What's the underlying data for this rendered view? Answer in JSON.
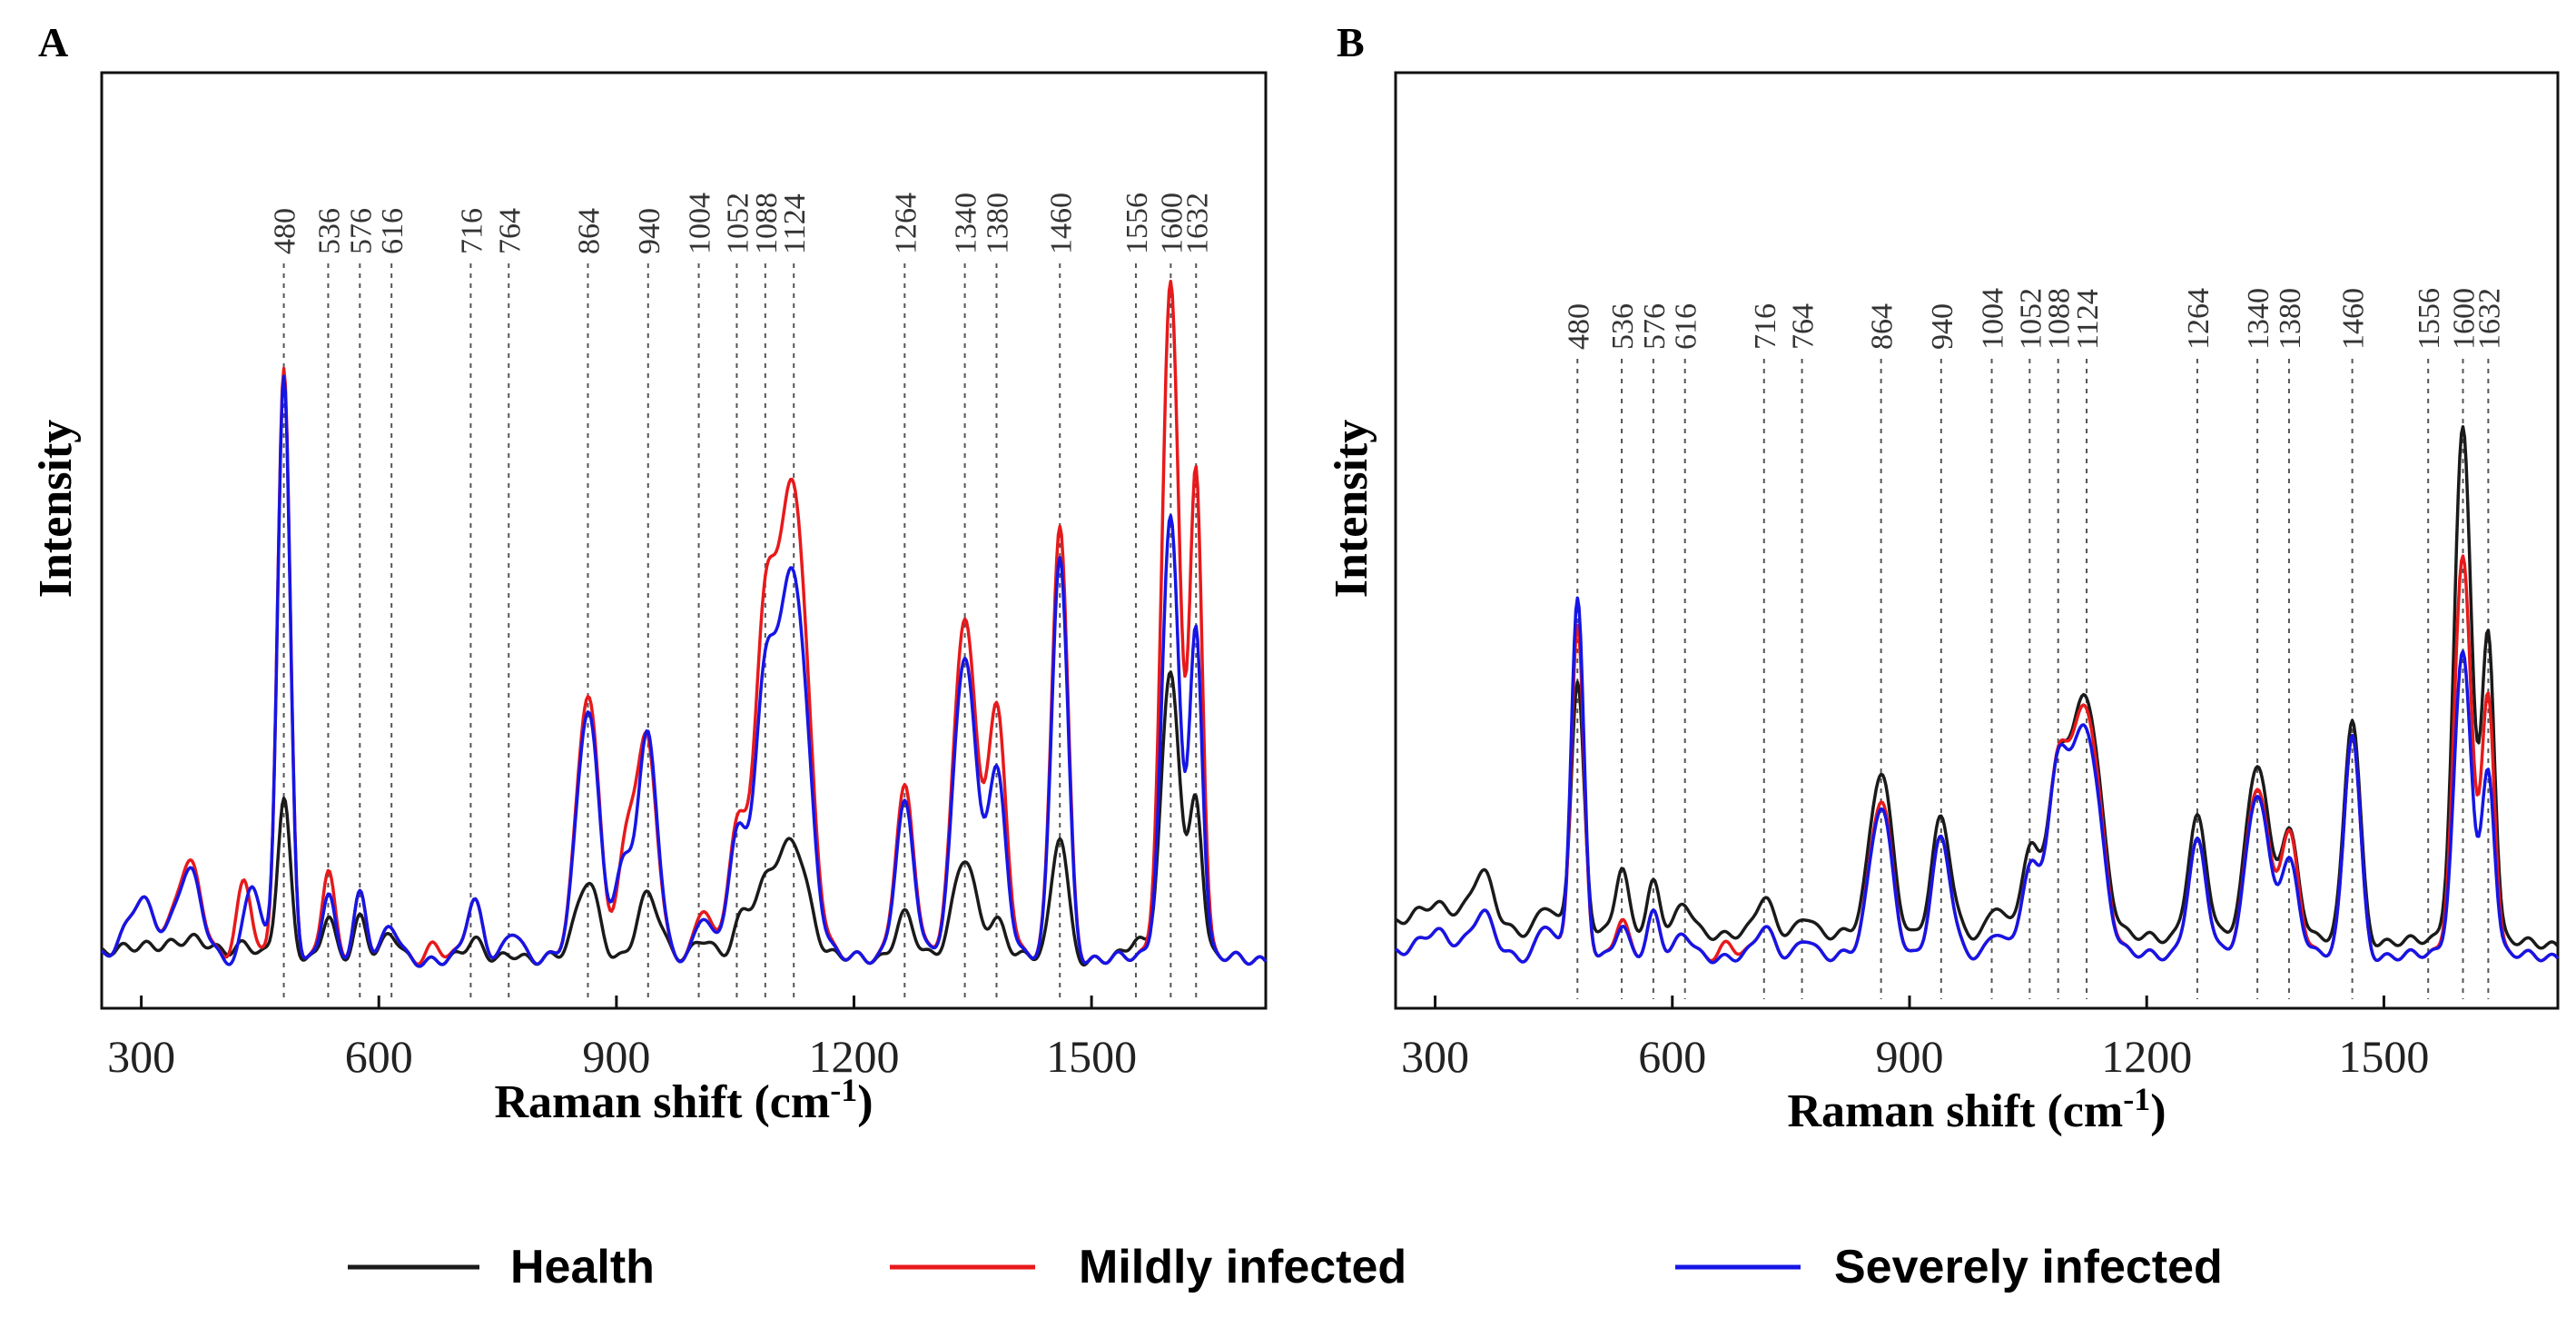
{
  "figure": {
    "legend": [
      {
        "name": "Health",
        "color": "#1a1a1a"
      },
      {
        "name": "Mildly infected",
        "color": "#e8191b"
      },
      {
        "name": "Severely infected",
        "color": "#1515e6"
      }
    ]
  },
  "chart_data": [
    {
      "type": "line",
      "panel": "A",
      "xlabel": "Raman shift (cm-1)",
      "xlabel_main": "Raman shift (cm",
      "xlabel_sup": "-1",
      "xlabel_close": ")",
      "ylabel": "Intensity",
      "xlim": [
        250,
        1720
      ],
      "ylim": [
        0,
        100
      ],
      "xticks": [
        300,
        600,
        900,
        1200,
        1500
      ],
      "xtick_labels": [
        "300",
        "600",
        "900",
        "1200",
        "1500"
      ],
      "peak_labels": [
        "480",
        "536",
        "576",
        "616",
        "716",
        "764",
        "864",
        "940",
        "1004",
        "1052",
        "1088",
        "1124",
        "1264",
        "1340",
        "1380",
        "1460",
        "1556",
        "1600",
        "1632"
      ],
      "series": [
        {
          "name": "Health",
          "color": "#1a1a1a",
          "baseline": 4,
          "slope": 0,
          "peaks": [
            [
              300,
              2,
              30
            ],
            [
              370,
              2,
              25
            ],
            [
              430,
              2,
              15
            ],
            [
              480,
              20,
              8
            ],
            [
              536,
              6,
              8
            ],
            [
              576,
              5,
              8
            ],
            [
              616,
              3,
              10
            ],
            [
              720,
              2,
              10
            ],
            [
              770,
              1,
              10
            ],
            [
              864,
              10,
              14
            ],
            [
              940,
              8,
              14
            ],
            [
              1010,
              3,
              12
            ],
            [
              1060,
              5,
              12
            ],
            [
              1090,
              8,
              14
            ],
            [
              1124,
              15,
              18
            ],
            [
              1264,
              6,
              12
            ],
            [
              1340,
              13,
              14
            ],
            [
              1380,
              5,
              12
            ],
            [
              1460,
              16,
              10
            ],
            [
              1556,
              2,
              10
            ],
            [
              1600,
              37,
              12
            ],
            [
              1632,
              20,
              8
            ]
          ]
        },
        {
          "name": "Mildly infected",
          "color": "#e8191b",
          "baseline": 4,
          "slope": 0,
          "peaks": [
            [
              300,
              8,
              18
            ],
            [
              360,
              12,
              16
            ],
            [
              430,
              10,
              10
            ],
            [
              480,
              75,
              8
            ],
            [
              536,
              12,
              8
            ],
            [
              576,
              8,
              8
            ],
            [
              616,
              4,
              10
            ],
            [
              670,
              2,
              10
            ],
            [
              720,
              7,
              10
            ],
            [
              770,
              4,
              10
            ],
            [
              864,
              34,
              14
            ],
            [
              915,
              16,
              12
            ],
            [
              940,
              26,
              12
            ],
            [
              1010,
              7,
              10
            ],
            [
              1052,
              16,
              12
            ],
            [
              1088,
              40,
              14
            ],
            [
              1124,
              60,
              18
            ],
            [
              1264,
              22,
              12
            ],
            [
              1340,
              44,
              14
            ],
            [
              1380,
              32,
              12
            ],
            [
              1460,
              56,
              10
            ],
            [
              1600,
              87,
              11
            ],
            [
              1632,
              62,
              8
            ]
          ]
        },
        {
          "name": "Severely infected",
          "color": "#1515e6",
          "baseline": 4,
          "slope": 0,
          "peaks": [
            [
              300,
              8,
              18
            ],
            [
              360,
              11,
              16
            ],
            [
              440,
              10,
              10
            ],
            [
              480,
              74,
              8
            ],
            [
              536,
              9,
              8
            ],
            [
              576,
              8,
              8
            ],
            [
              616,
              4,
              10
            ],
            [
              720,
              7,
              10
            ],
            [
              770,
              4,
              10
            ],
            [
              864,
              32,
              14
            ],
            [
              910,
              12,
              12
            ],
            [
              940,
              28,
              12
            ],
            [
              1010,
              6,
              10
            ],
            [
              1052,
              15,
              12
            ],
            [
              1088,
              32,
              14
            ],
            [
              1124,
              49,
              18
            ],
            [
              1264,
              20,
              12
            ],
            [
              1340,
              39,
              14
            ],
            [
              1380,
              24,
              12
            ],
            [
              1460,
              52,
              10
            ],
            [
              1600,
              57,
              11
            ],
            [
              1632,
              42,
              8
            ]
          ]
        }
      ]
    },
    {
      "type": "line",
      "panel": "B",
      "xlabel": "Raman shift (cm-1)",
      "xlabel_main": "Raman shift (cm",
      "xlabel_sup": "-1",
      "xlabel_close": ")",
      "ylabel": "Intensity",
      "xlim": [
        250,
        1720
      ],
      "ylim": [
        0,
        100
      ],
      "xticks": [
        300,
        600,
        900,
        1200,
        1500
      ],
      "xtick_labels": [
        "300",
        "600",
        "900",
        "1200",
        "1500"
      ],
      "peak_labels": [
        "480",
        "536",
        "576",
        "616",
        "716",
        "764",
        "864",
        "940",
        "1004",
        "1052",
        "1088",
        "1124",
        "1264",
        "1340",
        "1380",
        "1460",
        "1556",
        "1600",
        "1632"
      ],
      "series": [
        {
          "name": "Health",
          "color": "#1a1a1a",
          "baseline": 9,
          "slope": -0.0015,
          "peaks": [
            [
              300,
              4,
              25
            ],
            [
              360,
              8,
              14
            ],
            [
              440,
              4,
              10
            ],
            [
              480,
              36,
              8
            ],
            [
              536,
              10,
              8
            ],
            [
              576,
              7,
              8
            ],
            [
              616,
              4,
              10
            ],
            [
              716,
              5,
              10
            ],
            [
              770,
              3,
              10
            ],
            [
              864,
              24,
              14
            ],
            [
              940,
              17,
              12
            ],
            [
              1010,
              5,
              10
            ],
            [
              1052,
              12,
              12
            ],
            [
              1088,
              22,
              14
            ],
            [
              1124,
              35,
              18
            ],
            [
              1264,
              18,
              12
            ],
            [
              1340,
              26,
              14
            ],
            [
              1380,
              16,
              12
            ],
            [
              1460,
              33,
              10
            ],
            [
              1600,
              76,
              11
            ],
            [
              1632,
              45,
              8
            ]
          ]
        },
        {
          "name": "Mildly infected",
          "color": "#e8191b",
          "baseline": 5,
          "slope": 0,
          "peaks": [
            [
              300,
              4,
              20
            ],
            [
              360,
              6,
              14
            ],
            [
              440,
              5,
              10
            ],
            [
              480,
              48,
              8
            ],
            [
              536,
              6,
              8
            ],
            [
              576,
              6,
              8
            ],
            [
              616,
              3,
              10
            ],
            [
              670,
              2,
              10
            ],
            [
              716,
              4,
              10
            ],
            [
              770,
              3,
              10
            ],
            [
              864,
              23,
              14
            ],
            [
              940,
              17,
              12
            ],
            [
              1010,
              4,
              10
            ],
            [
              1052,
              12,
              12
            ],
            [
              1088,
              25,
              14
            ],
            [
              1124,
              36,
              18
            ],
            [
              1264,
              17,
              12
            ],
            [
              1340,
              25,
              14
            ],
            [
              1380,
              18,
              12
            ],
            [
              1460,
              33,
              10
            ],
            [
              1600,
              59,
              11
            ],
            [
              1632,
              38,
              8
            ]
          ]
        },
        {
          "name": "Severely infected",
          "color": "#1515e6",
          "baseline": 5,
          "slope": 0,
          "peaks": [
            [
              300,
              4,
              20
            ],
            [
              360,
              6,
              14
            ],
            [
              440,
              5,
              10
            ],
            [
              480,
              52,
              8
            ],
            [
              536,
              5,
              8
            ],
            [
              576,
              6,
              8
            ],
            [
              616,
              3,
              10
            ],
            [
              716,
              4,
              10
            ],
            [
              770,
              3,
              10
            ],
            [
              864,
              22,
              14
            ],
            [
              940,
              17,
              12
            ],
            [
              1010,
              4,
              10
            ],
            [
              1052,
              12,
              12
            ],
            [
              1088,
              25,
              14
            ],
            [
              1124,
              33,
              18
            ],
            [
              1264,
              17,
              12
            ],
            [
              1340,
              24,
              14
            ],
            [
              1380,
              14,
              12
            ],
            [
              1460,
              33,
              10
            ],
            [
              1600,
              45,
              11
            ],
            [
              1632,
              27,
              8
            ]
          ]
        }
      ]
    }
  ]
}
